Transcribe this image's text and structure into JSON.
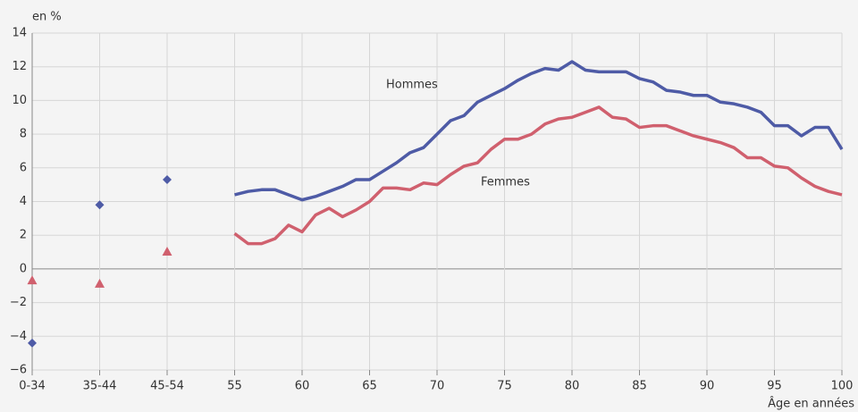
{
  "chart_data": {
    "type": "line",
    "y_label": "en %",
    "x_label": "Âge en années",
    "xlim": [
      40,
      100
    ],
    "xticks": [
      {
        "value": 40,
        "label": "0-34"
      },
      {
        "value": 45,
        "label": "35-44"
      },
      {
        "value": 50,
        "label": "45-54"
      },
      55,
      60,
      65,
      70,
      75,
      80,
      85,
      90,
      95,
      100
    ],
    "ylim": [
      -6,
      14
    ],
    "yticks": [
      {
        "value": -6,
        "label": "−6"
      },
      {
        "value": -4,
        "label": "−4"
      },
      {
        "value": -2,
        "label": "−2"
      },
      0,
      2,
      4,
      6,
      8,
      10,
      12,
      14
    ],
    "grid": true,
    "series": [
      {
        "name": "Hommes",
        "color": "#4e5ba6",
        "x": [
          55,
          56,
          57,
          58,
          59,
          60,
          61,
          62,
          63,
          64,
          65,
          66,
          67,
          68,
          69,
          70,
          71,
          72,
          73,
          74,
          75,
          76,
          77,
          78,
          79,
          80,
          81,
          82,
          83,
          84,
          85,
          86,
          87,
          88,
          89,
          90,
          91,
          92,
          93,
          94,
          95,
          96,
          97,
          98,
          99,
          100
        ],
        "values": [
          4.4,
          4.6,
          4.7,
          4.7,
          4.4,
          4.1,
          4.3,
          4.6,
          4.9,
          5.3,
          5.3,
          5.8,
          6.3,
          6.9,
          7.2,
          8.0,
          8.8,
          9.1,
          9.9,
          10.3,
          10.7,
          11.2,
          11.6,
          11.9,
          11.8,
          12.3,
          11.8,
          11.7,
          11.7,
          11.7,
          11.3,
          11.1,
          10.6,
          10.5,
          10.3,
          10.3,
          9.9,
          9.8,
          9.6,
          9.3,
          8.5,
          8.5,
          7.9,
          8.4,
          8.4,
          7.1
        ]
      },
      {
        "name": "Femmes",
        "color": "#d0606e",
        "x": [
          55,
          56,
          57,
          58,
          59,
          60,
          61,
          62,
          63,
          64,
          65,
          66,
          67,
          68,
          69,
          70,
          71,
          72,
          73,
          74,
          75,
          76,
          77,
          78,
          79,
          80,
          81,
          82,
          83,
          84,
          85,
          86,
          87,
          88,
          89,
          90,
          91,
          92,
          93,
          94,
          95,
          96,
          97,
          98,
          99,
          100
        ],
        "values": [
          2.1,
          1.5,
          1.5,
          1.8,
          2.6,
          2.2,
          3.2,
          3.6,
          3.1,
          3.5,
          4.0,
          4.8,
          4.8,
          4.7,
          5.1,
          5.0,
          5.6,
          6.1,
          6.3,
          7.1,
          7.7,
          7.7,
          8.0,
          8.6,
          8.9,
          9.0,
          9.3,
          9.6,
          9.0,
          8.9,
          8.4,
          8.5,
          8.5,
          8.2,
          7.9,
          7.7,
          7.5,
          7.2,
          6.6,
          6.6,
          6.1,
          6.0,
          5.4,
          4.9,
          4.6,
          4.4
        ]
      }
    ],
    "points": [
      {
        "color": "#4e5ba6",
        "marker": "diamond",
        "x": [
          40,
          45,
          50
        ],
        "values": [
          -4.4,
          3.8,
          5.3
        ]
      },
      {
        "color": "#d0606e",
        "marker": "triangle",
        "x": [
          40,
          45,
          50
        ],
        "values": [
          -0.7,
          -0.9,
          1.0
        ]
      }
    ]
  }
}
